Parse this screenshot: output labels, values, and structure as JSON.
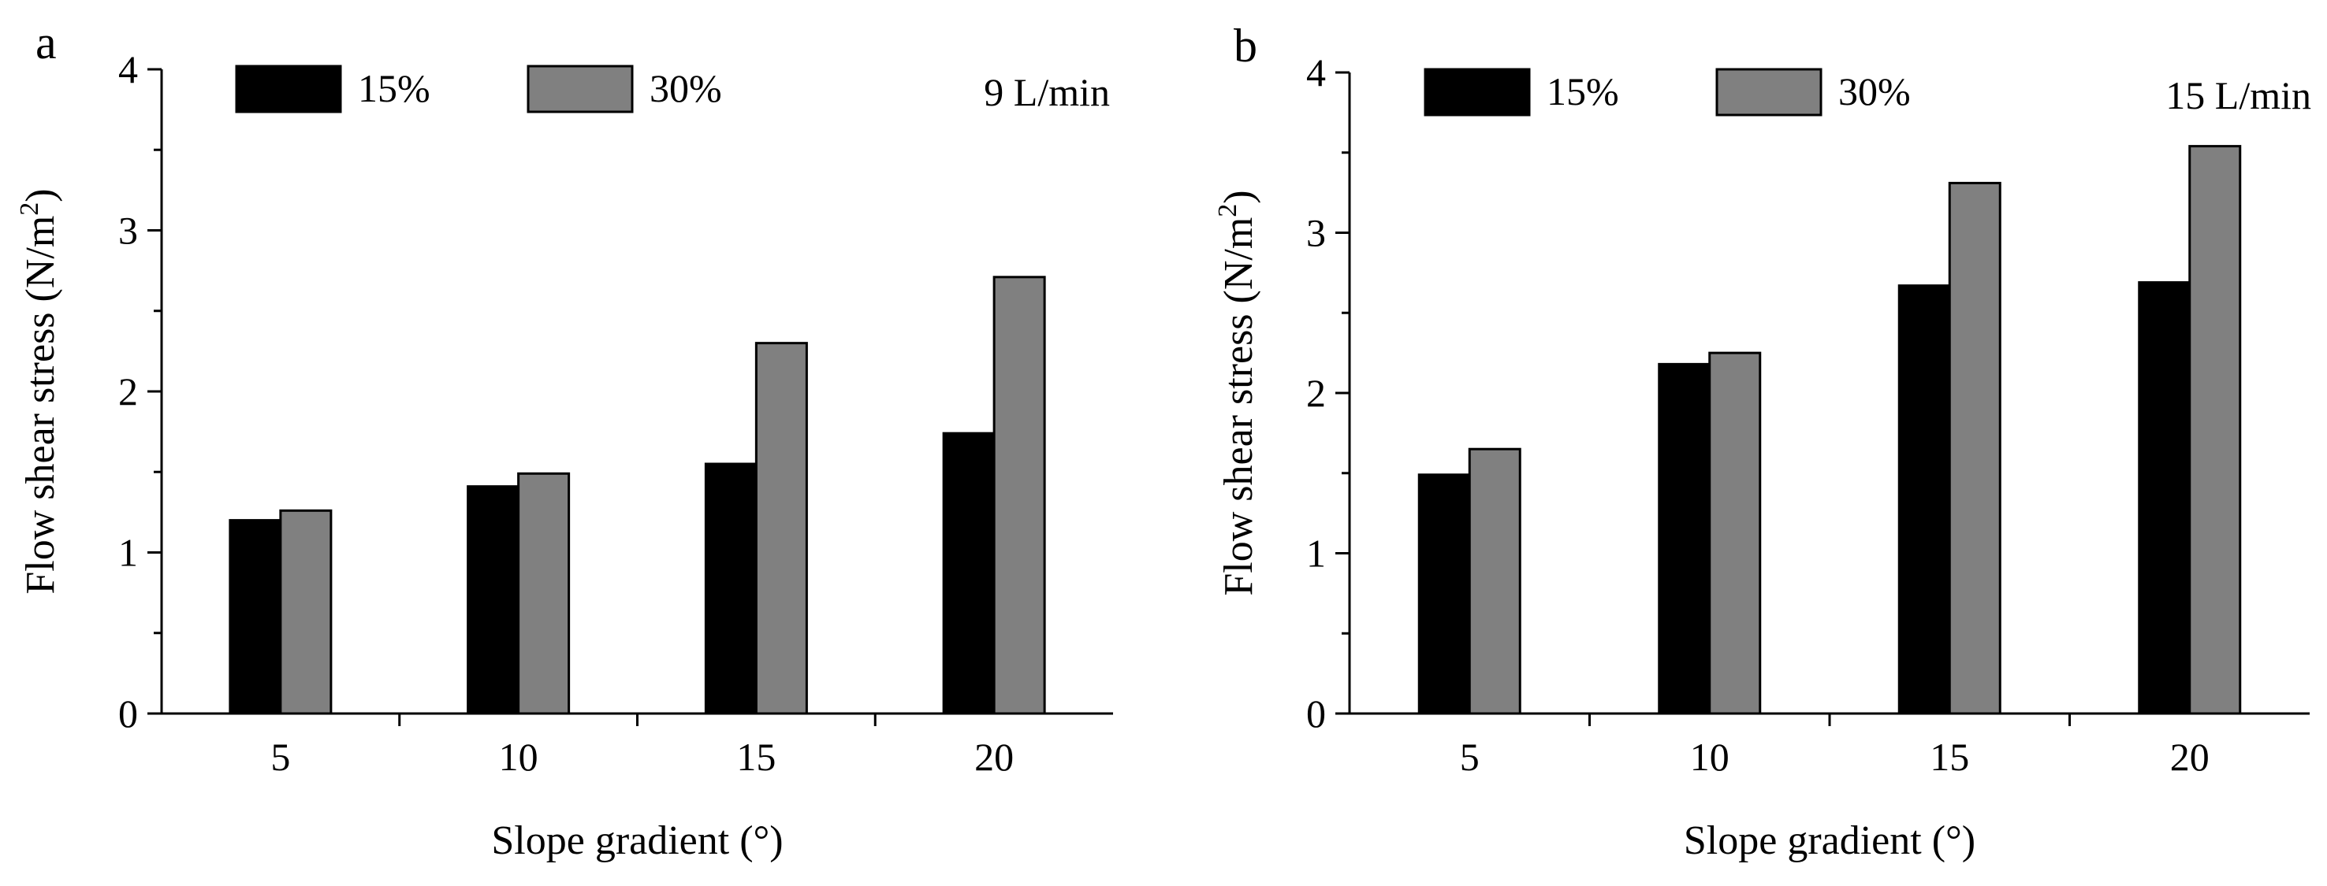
{
  "figure": {
    "panels": [
      {
        "panel_label": "a",
        "condition": "9 L/min",
        "chart_data": {
          "type": "bar",
          "xlabel": "Slope gradient (°)",
          "ylabel": "Flow shear stress (N/m",
          "ylabel_sup": "2",
          "ylabel_end": ")",
          "categories": [
            "5",
            "10",
            "15",
            "20"
          ],
          "series": [
            {
              "name": "15%",
              "color": "#000000",
              "values": [
                1.2,
                1.41,
                1.55,
                1.74
              ]
            },
            {
              "name": "30%",
              "color": "#808080",
              "values": [
                1.26,
                1.49,
                2.3,
                2.71
              ]
            }
          ],
          "ylim": [
            0,
            4
          ],
          "yticks": [
            "0",
            "1",
            "2",
            "3",
            "4"
          ]
        }
      },
      {
        "panel_label": "b",
        "condition": "15 L/min",
        "chart_data": {
          "type": "bar",
          "xlabel": "Slope gradient (°)",
          "ylabel": "Flow shear stress (N/m",
          "ylabel_sup": "2",
          "ylabel_end": ")",
          "categories": [
            "5",
            "10",
            "15",
            "20"
          ],
          "series": [
            {
              "name": "15%",
              "color": "#000000",
              "values": [
                1.49,
                2.18,
                2.67,
                2.69
              ]
            },
            {
              "name": "30%",
              "color": "#808080",
              "values": [
                1.65,
                2.25,
                3.31,
                3.54
              ]
            }
          ],
          "ylim": [
            0,
            4
          ],
          "yticks": [
            "0",
            "1",
            "2",
            "3",
            "4"
          ]
        }
      }
    ]
  }
}
